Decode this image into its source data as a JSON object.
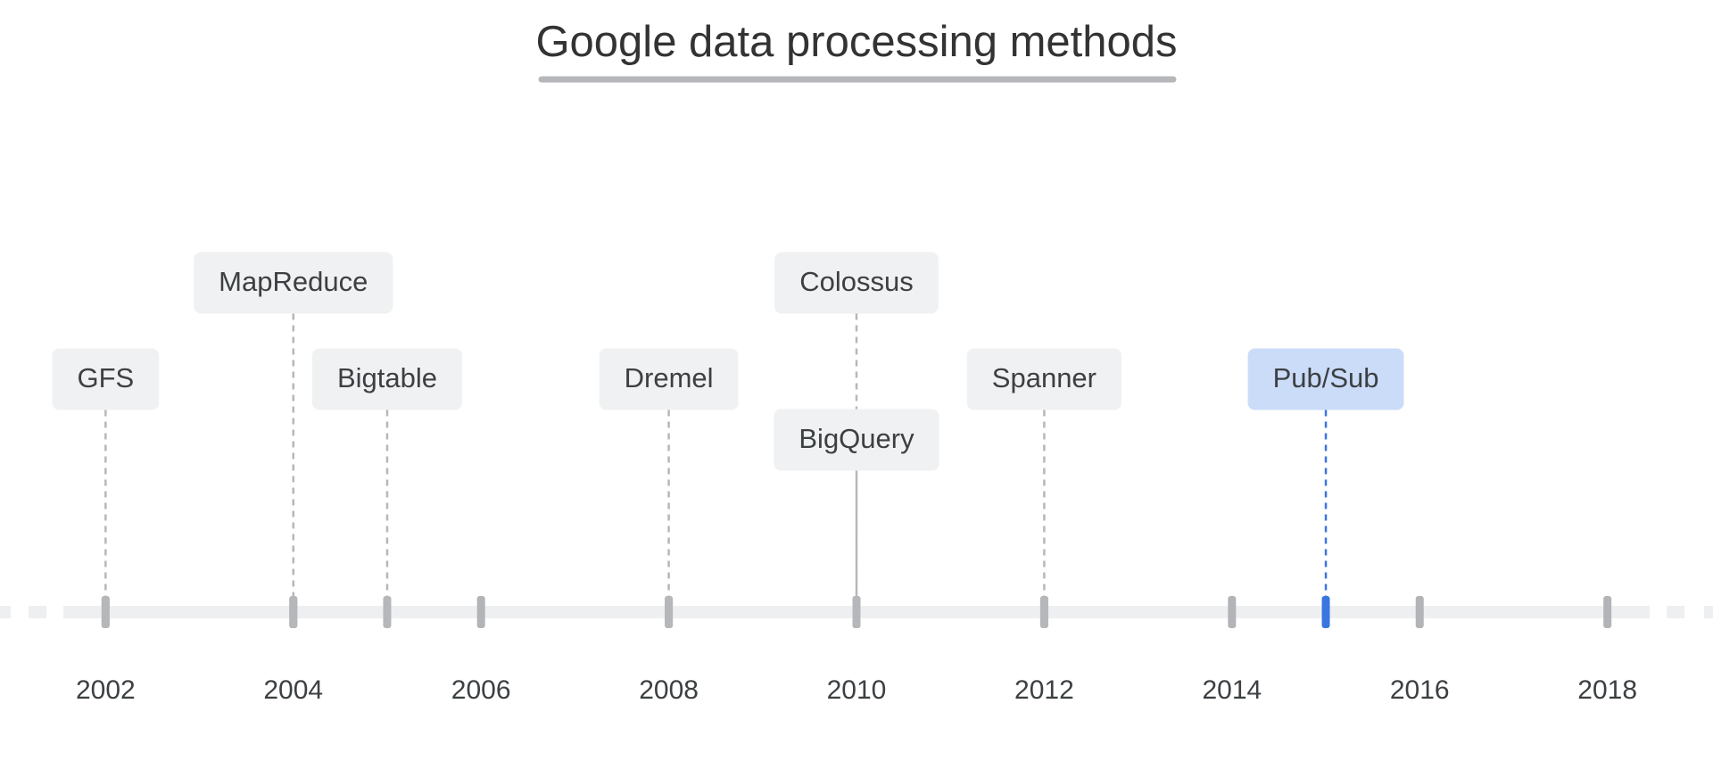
{
  "chart_data": {
    "type": "timeline",
    "title": "Google data processing methods",
    "xlim": [
      2001.55,
      2018.45
    ],
    "xticks": [
      2002,
      2004,
      2006,
      2008,
      2010,
      2012,
      2014,
      2016,
      2018
    ],
    "events": [
      {
        "name": "GFS",
        "year": 2002,
        "color": "#f0f1f2",
        "line_color": "#b5b7ba"
      },
      {
        "name": "MapReduce",
        "year": 2004,
        "color": "#f0f1f2",
        "line_color": "#b5b7ba"
      },
      {
        "name": "Bigtable",
        "year": 2005,
        "color": "#f0f1f2",
        "line_color": "#b5b7ba"
      },
      {
        "name": "Dremel",
        "year": 2008,
        "color": "#f0f1f2",
        "line_color": "#b5b7ba"
      },
      {
        "name": "Colossus",
        "year": 2010,
        "color": "#f0f1f2",
        "line_color": "#b5b7ba"
      },
      {
        "name": "BigQuery",
        "year": 2010,
        "color": "#f0f1f2",
        "line_color": "#b5b7ba"
      },
      {
        "name": "Spanner",
        "year": 2012,
        "color": "#f0f1f2",
        "line_color": "#b5b7ba"
      },
      {
        "name": "Pub/Sub",
        "year": 2015,
        "color": "#cbdcf8",
        "line_color": "#3a76e0"
      }
    ]
  }
}
